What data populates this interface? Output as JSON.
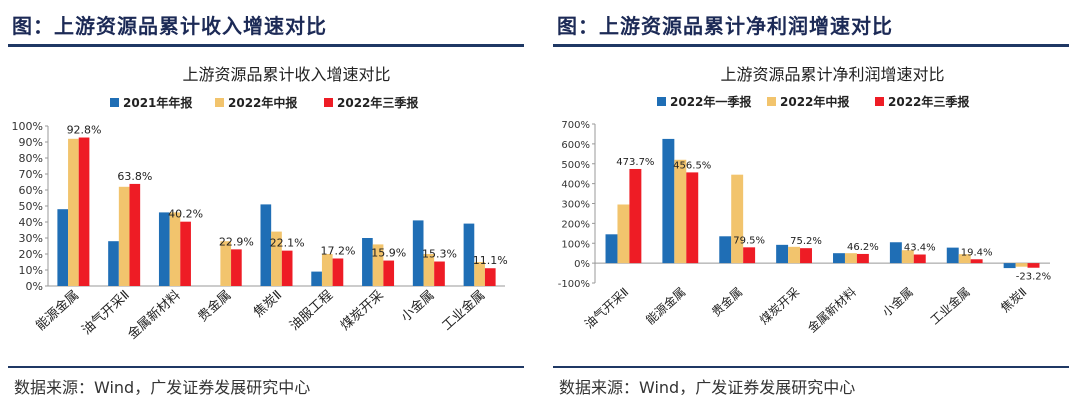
{
  "colors": {
    "blue": "#1f6eb5",
    "yellow": "#f2c46d",
    "red": "#ee1c25",
    "rule": "#1f3864",
    "title": "#1c2a56"
  },
  "left": {
    "figure_title": "图：上游资源品累计收入增速对比",
    "source": "数据来源：Wind，广发证券发展研究中心"
  },
  "right": {
    "figure_title": "图：上游资源品累计净利润增速对比",
    "source": "数据来源：Wind，广发证券发展研究中心"
  },
  "chart_data": [
    {
      "type": "bar",
      "title": "上游资源品累计收入增速对比",
      "categories": [
        "能源金属",
        "油气开采Ⅱ",
        "金属新材料",
        "贵金属",
        "焦炭Ⅱ",
        "油服工程",
        "煤炭开采",
        "小金属",
        "工业金属"
      ],
      "series": [
        {
          "name": "2021年年报",
          "color": "#1f6eb5",
          "values": [
            48,
            28,
            46,
            0,
            51,
            9,
            30,
            41,
            39
          ]
        },
        {
          "name": "2022年中报",
          "color": "#f2c46d",
          "values": [
            92,
            62,
            46,
            28,
            34,
            20,
            26,
            20,
            15
          ]
        },
        {
          "name": "2022年三季报",
          "color": "#ee1c25",
          "values": [
            92.8,
            63.8,
            40.2,
            22.9,
            22.1,
            17.2,
            15.9,
            15.3,
            11.1
          ]
        }
      ],
      "data_labels": [
        "92.8%",
        "63.8%",
        "40.2%",
        "22.9%",
        "22.1%",
        "17.2%",
        "15.9%",
        "15.3%",
        "11.1%"
      ],
      "ylim": [
        0,
        100
      ],
      "yticks": [
        "0%",
        "10%",
        "20%",
        "30%",
        "40%",
        "50%",
        "60%",
        "70%",
        "80%",
        "90%",
        "100%"
      ],
      "legend": "top",
      "grid": false
    },
    {
      "type": "bar",
      "title": "上游资源品累计净利润增速对比",
      "categories": [
        "油气开采Ⅱ",
        "能源金属",
        "贵金属",
        "煤炭开采",
        "金属新材料",
        "小金属",
        "工业金属",
        "焦炭Ⅱ"
      ],
      "series": [
        {
          "name": "2022年一季报",
          "color": "#1f6eb5",
          "values": [
            145,
            625,
            135,
            92,
            50,
            105,
            78,
            -25
          ]
        },
        {
          "name": "2022年中报",
          "color": "#f2c46d",
          "values": [
            295,
            520,
            445,
            82,
            50,
            65,
            45,
            -18
          ]
        },
        {
          "name": "2022年三季报",
          "color": "#ee1c25",
          "values": [
            473.7,
            456.5,
            79.5,
            75.2,
            46.2,
            43.4,
            19.4,
            -23.2
          ]
        }
      ],
      "data_labels": [
        "473.7%",
        "456.5%",
        "79.5%",
        "75.2%",
        "46.2%",
        "43.4%",
        "19.4%",
        "-23.2%"
      ],
      "ylim": [
        -100,
        700
      ],
      "yticks": [
        "-100%",
        "0%",
        "100%",
        "200%",
        "300%",
        "400%",
        "500%",
        "600%",
        "700%"
      ],
      "legend": "top",
      "grid": false
    }
  ]
}
